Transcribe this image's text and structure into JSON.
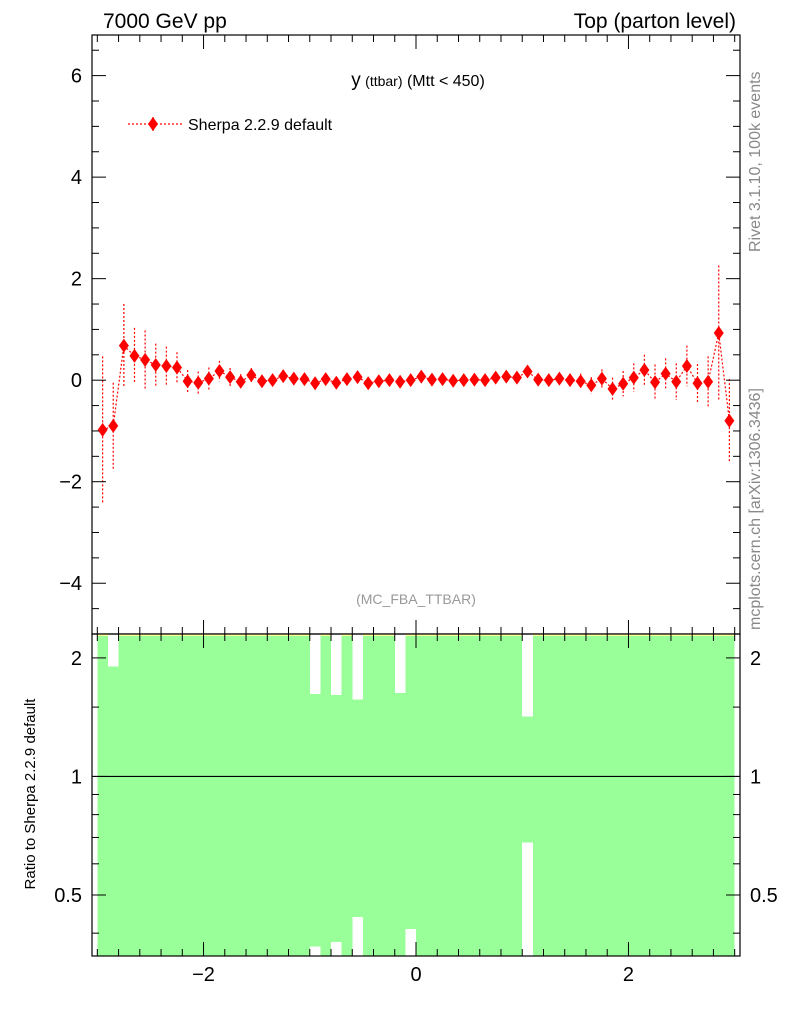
{
  "header": {
    "left": "7000 GeV pp",
    "right": "Top (parton level)"
  },
  "side_texts": {
    "rivet": "Rivet 3.1.10,  100k events",
    "url": "mcplots.cern.ch [arXiv:1306.3436]"
  },
  "colors": {
    "series": "#ff0000",
    "band_inner": "#99ff99",
    "band_outer": "#ffff99"
  },
  "chart_data": [
    {
      "type": "scatter",
      "title_main": "y",
      "title_small": "(ttbar)",
      "title_rest": "(Mtt < 450)",
      "watermark": "(MC_FBA_TTBAR)",
      "xlabel": "",
      "ylabel": "",
      "xlim": [
        -3.05,
        3.05
      ],
      "ylim": [
        -5,
        6.8
      ],
      "yticks": [
        -4,
        -2,
        0,
        2,
        4,
        6
      ],
      "legend_position": "top-left",
      "series": [
        {
          "name": "Sherpa 2.2.9 default",
          "color": "#ff0000",
          "x": [
            -2.95,
            -2.85,
            -2.75,
            -2.65,
            -2.55,
            -2.45,
            -2.35,
            -2.25,
            -2.15,
            -2.05,
            -1.95,
            -1.85,
            -1.75,
            -1.65,
            -1.55,
            -1.45,
            -1.35,
            -1.25,
            -1.15,
            -1.05,
            -0.95,
            -0.85,
            -0.75,
            -0.65,
            -0.55,
            -0.45,
            -0.35,
            -0.25,
            -0.15,
            -0.05,
            0.05,
            0.15,
            0.25,
            0.35,
            0.45,
            0.55,
            0.65,
            0.75,
            0.85,
            0.95,
            1.05,
            1.15,
            1.25,
            1.35,
            1.45,
            1.55,
            1.65,
            1.75,
            1.85,
            1.95,
            2.05,
            2.15,
            2.25,
            2.35,
            2.45,
            2.55,
            2.65,
            2.75,
            2.85,
            2.95
          ],
          "y": [
            -0.98,
            -0.9,
            0.68,
            0.48,
            0.4,
            0.3,
            0.28,
            0.25,
            -0.02,
            -0.05,
            0.03,
            0.18,
            0.06,
            -0.03,
            0.1,
            -0.02,
            0.0,
            0.08,
            0.03,
            0.02,
            -0.06,
            0.02,
            -0.05,
            0.02,
            0.06,
            -0.06,
            -0.02,
            0.0,
            -0.03,
            0.0,
            0.07,
            0.01,
            0.02,
            -0.01,
            0.0,
            0.01,
            0.0,
            0.05,
            0.07,
            0.05,
            0.17,
            0.01,
            0.0,
            0.03,
            0.0,
            -0.02,
            -0.1,
            0.03,
            -0.17,
            -0.07,
            0.05,
            0.2,
            -0.04,
            0.13,
            -0.03,
            0.28,
            -0.06,
            -0.03,
            0.93,
            -0.8
          ],
          "yerr": [
            1.45,
            0.85,
            0.82,
            0.55,
            0.58,
            0.42,
            0.38,
            0.3,
            0.22,
            0.22,
            0.22,
            0.2,
            0.18,
            0.15,
            0.14,
            0.12,
            0.12,
            0.12,
            0.12,
            0.12,
            0.12,
            0.12,
            0.12,
            0.12,
            0.12,
            0.12,
            0.12,
            0.12,
            0.12,
            0.12,
            0.12,
            0.12,
            0.12,
            0.12,
            0.12,
            0.12,
            0.12,
            0.12,
            0.12,
            0.12,
            0.12,
            0.12,
            0.12,
            0.12,
            0.12,
            0.15,
            0.16,
            0.18,
            0.22,
            0.25,
            0.28,
            0.3,
            0.35,
            0.3,
            0.36,
            0.4,
            0.38,
            0.5,
            1.33,
            0.82
          ]
        }
      ]
    },
    {
      "type": "area",
      "ylabel": "Ratio to Sherpa 2.2.9 default",
      "xlabel": "",
      "xlim": [
        -3.05,
        3.05
      ],
      "ylim": [
        0.35,
        2.3
      ],
      "yscale": "log",
      "yticks": [
        0.5,
        1,
        2
      ],
      "xticks": [
        -2,
        0,
        2
      ],
      "reference_line": 1,
      "bins_x": [
        -2.95,
        -2.85,
        -2.75,
        -2.65,
        -2.55,
        -2.45,
        -2.35,
        -2.25,
        -2.15,
        -2.05,
        -1.95,
        -1.85,
        -1.75,
        -1.65,
        -1.55,
        -1.45,
        -1.35,
        -1.25,
        -1.15,
        -1.05,
        -0.95,
        -0.85,
        -0.75,
        -0.65,
        -0.55,
        -0.45,
        -0.35,
        -0.25,
        -0.15,
        -0.05,
        0.05,
        0.15,
        0.25,
        0.35,
        0.45,
        0.55,
        0.65,
        0.75,
        0.85,
        0.95,
        1.05,
        1.15,
        1.25,
        1.35,
        1.45,
        1.55,
        1.65,
        1.75,
        1.85,
        1.95,
        2.05,
        2.15,
        2.25,
        2.35,
        2.45,
        2.55,
        2.65,
        2.75,
        2.85,
        2.95
      ],
      "inner_band": {
        "name": "",
        "color": "#99ff99",
        "low": [
          0.35,
          0.35,
          0.35,
          0.35,
          0.35,
          0.35,
          0.35,
          0.35,
          0.35,
          0.35,
          0.35,
          0.35,
          0.35,
          0.35,
          0.35,
          0.35,
          0.35,
          0.35,
          0.35,
          0.35,
          0.35,
          0.35,
          0.35,
          0.35,
          0.35,
          0.35,
          0.35,
          0.35,
          0.35,
          0.35,
          0.35,
          0.35,
          0.35,
          0.35,
          0.35,
          0.35,
          0.35,
          0.35,
          0.35,
          0.35,
          0.35,
          0.35,
          0.35,
          0.35,
          0.35,
          0.35,
          0.35,
          0.35,
          0.35,
          0.35,
          0.35,
          0.35,
          0.35,
          0.35,
          0.35,
          0.35,
          0.35,
          0.35,
          0.35,
          0.35
        ],
        "high": [
          2.3,
          2.3,
          2.3,
          2.3,
          2.3,
          2.3,
          2.3,
          2.3,
          2.3,
          2.3,
          2.3,
          2.3,
          2.3,
          2.3,
          2.3,
          2.3,
          2.3,
          2.3,
          2.3,
          2.3,
          2.3,
          2.3,
          2.3,
          2.3,
          2.3,
          2.3,
          2.3,
          2.3,
          2.3,
          2.3,
          2.3,
          2.3,
          2.3,
          2.3,
          2.3,
          2.3,
          2.3,
          2.3,
          2.3,
          2.3,
          2.3,
          2.3,
          2.3,
          2.3,
          2.3,
          2.3,
          2.3,
          2.3,
          2.3,
          2.3,
          2.3,
          2.3,
          2.3,
          2.3,
          2.3,
          2.3,
          2.3,
          2.3,
          2.3,
          2.3
        ]
      },
      "outer_band": {
        "name": "",
        "color": "#ffff99",
        "low": [
          0.35,
          0.35,
          0.35,
          0.35,
          0.35,
          0.35,
          0.35,
          0.35,
          0.35,
          0.35,
          0.35,
          0.35,
          0.35,
          0.35,
          0.35,
          0.35,
          0.35,
          0.35,
          0.35,
          0.35,
          0.37,
          0.35,
          0.38,
          0.35,
          0.44,
          0.35,
          0.35,
          0.35,
          0.35,
          0.41,
          0.35,
          0.35,
          0.35,
          0.35,
          0.35,
          0.35,
          0.35,
          0.35,
          0.35,
          0.35,
          0.68,
          0.35,
          0.35,
          0.35,
          0.35,
          0.35,
          0.35,
          0.35,
          0.35,
          0.35,
          0.35,
          0.35,
          0.35,
          0.35,
          0.35,
          0.35,
          0.35,
          0.35,
          0.35,
          0.35
        ],
        "high": [
          2.3,
          1.9,
          2.3,
          2.3,
          2.3,
          2.3,
          2.3,
          2.3,
          2.3,
          2.3,
          2.3,
          2.3,
          2.3,
          2.3,
          2.3,
          2.3,
          2.3,
          2.3,
          2.3,
          2.3,
          1.62,
          2.3,
          1.61,
          2.3,
          1.57,
          2.3,
          2.3,
          2.3,
          1.63,
          2.3,
          2.3,
          2.3,
          2.3,
          2.3,
          2.3,
          2.3,
          2.3,
          2.3,
          2.3,
          2.3,
          1.42,
          2.3,
          2.3,
          2.3,
          2.3,
          2.3,
          2.3,
          2.3,
          2.3,
          2.3,
          2.3,
          2.3,
          2.3,
          2.3,
          2.3,
          2.3,
          2.3,
          2.3,
          2.3,
          2.3
        ]
      }
    }
  ]
}
